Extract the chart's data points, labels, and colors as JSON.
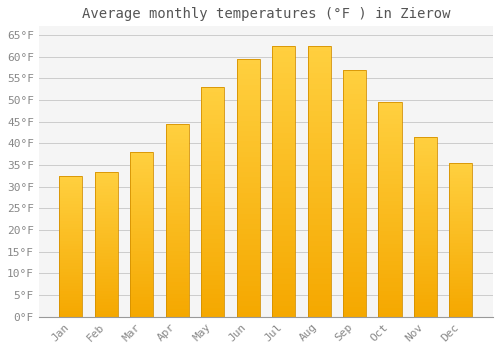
{
  "title": "Average monthly temperatures (°F ) in Zierow",
  "months": [
    "Jan",
    "Feb",
    "Mar",
    "Apr",
    "May",
    "Jun",
    "Jul",
    "Aug",
    "Sep",
    "Oct",
    "Nov",
    "Dec"
  ],
  "values": [
    32.5,
    33.5,
    38.0,
    44.5,
    53.0,
    59.5,
    62.5,
    62.5,
    57.0,
    49.5,
    41.5,
    35.5
  ],
  "bar_color_top": "#FFD040",
  "bar_color_bottom": "#F5A800",
  "bar_edge_color": "#D49000",
  "background_color": "#FFFFFF",
  "plot_bg_color": "#F5F5F5",
  "ylim": [
    0,
    67
  ],
  "yticks": [
    0,
    5,
    10,
    15,
    20,
    25,
    30,
    35,
    40,
    45,
    50,
    55,
    60,
    65
  ],
  "ytick_labels": [
    "0°F",
    "5°F",
    "10°F",
    "15°F",
    "20°F",
    "25°F",
    "30°F",
    "35°F",
    "40°F",
    "45°F",
    "50°F",
    "55°F",
    "60°F",
    "65°F"
  ],
  "title_fontsize": 10,
  "tick_fontsize": 8,
  "grid_color": "#CCCCCC",
  "font_family": "monospace"
}
